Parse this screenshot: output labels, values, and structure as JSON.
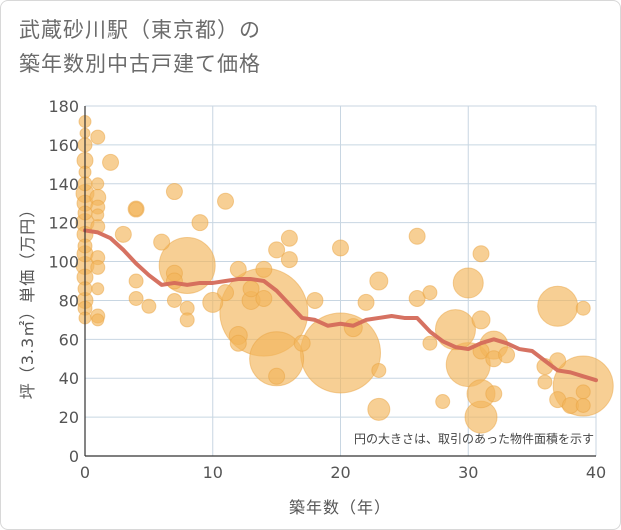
{
  "title": {
    "line1": "武蔵砂川駅（東京都）の",
    "line2": "築年数別中古戸建て価格"
  },
  "note": "円の大きさは、取引のあった物件面積を示す",
  "colors": {
    "bubble": "#f2b55a",
    "bubble_stroke": "#eaa441",
    "line": "#d46a5a",
    "grid": "#c8d6e2",
    "axis": "#333333"
  },
  "chart_data": {
    "type": "scatter",
    "title": "武蔵砂川駅（東京都）の築年数別中古戸建て価格",
    "xlabel": "築年数（年）",
    "ylabel": "坪（3.3㎡）単価（万円）",
    "xlim": [
      0,
      40
    ],
    "ylim": [
      0,
      180
    ],
    "xticks": [
      "0",
      "10",
      "20",
      "30",
      "40"
    ],
    "yticks": [
      "0",
      "20",
      "40",
      "60",
      "80",
      "100",
      "120",
      "140",
      "160",
      "180"
    ],
    "grid": true,
    "bubbles": [
      {
        "x": 0,
        "y": 172,
        "r": 6
      },
      {
        "x": 0,
        "y": 166,
        "r": 5
      },
      {
        "x": 0,
        "y": 160,
        "r": 7
      },
      {
        "x": 0,
        "y": 152,
        "r": 8
      },
      {
        "x": 0,
        "y": 146,
        "r": 6
      },
      {
        "x": 0,
        "y": 140,
        "r": 7
      },
      {
        "x": 0,
        "y": 135,
        "r": 9
      },
      {
        "x": 0,
        "y": 130,
        "r": 8
      },
      {
        "x": 0,
        "y": 125,
        "r": 7
      },
      {
        "x": 0,
        "y": 120,
        "r": 9
      },
      {
        "x": 0,
        "y": 114,
        "r": 8
      },
      {
        "x": 0,
        "y": 108,
        "r": 7
      },
      {
        "x": 0,
        "y": 104,
        "r": 8
      },
      {
        "x": 0,
        "y": 98,
        "r": 9
      },
      {
        "x": 0,
        "y": 92,
        "r": 8
      },
      {
        "x": 0,
        "y": 86,
        "r": 7
      },
      {
        "x": 0,
        "y": 80,
        "r": 8
      },
      {
        "x": 0,
        "y": 76,
        "r": 7
      },
      {
        "x": 0,
        "y": 71,
        "r": 6
      },
      {
        "x": 1,
        "y": 164,
        "r": 7
      },
      {
        "x": 1,
        "y": 140,
        "r": 6
      },
      {
        "x": 1,
        "y": 133,
        "r": 8
      },
      {
        "x": 1,
        "y": 128,
        "r": 7
      },
      {
        "x": 1,
        "y": 124,
        "r": 6
      },
      {
        "x": 1,
        "y": 118,
        "r": 7
      },
      {
        "x": 1,
        "y": 102,
        "r": 7
      },
      {
        "x": 1,
        "y": 97,
        "r": 7
      },
      {
        "x": 1,
        "y": 86,
        "r": 6
      },
      {
        "x": 1,
        "y": 72,
        "r": 7
      },
      {
        "x": 1,
        "y": 70,
        "r": 6
      },
      {
        "x": 2,
        "y": 151,
        "r": 8
      },
      {
        "x": 3,
        "y": 114,
        "r": 8
      },
      {
        "x": 4,
        "y": 127,
        "r": 8
      },
      {
        "x": 4,
        "y": 127,
        "r": 7
      },
      {
        "x": 4,
        "y": 90,
        "r": 7
      },
      {
        "x": 4,
        "y": 81,
        "r": 7
      },
      {
        "x": 5,
        "y": 77,
        "r": 7
      },
      {
        "x": 6,
        "y": 110,
        "r": 8
      },
      {
        "x": 7,
        "y": 136,
        "r": 8
      },
      {
        "x": 7,
        "y": 94,
        "r": 8
      },
      {
        "x": 7,
        "y": 90,
        "r": 8
      },
      {
        "x": 7,
        "y": 80,
        "r": 7
      },
      {
        "x": 8,
        "y": 98,
        "r": 28
      },
      {
        "x": 8,
        "y": 76,
        "r": 7
      },
      {
        "x": 8,
        "y": 70,
        "r": 7
      },
      {
        "x": 9,
        "y": 120,
        "r": 8
      },
      {
        "x": 10,
        "y": 79,
        "r": 10
      },
      {
        "x": 11,
        "y": 131,
        "r": 8
      },
      {
        "x": 11,
        "y": 84,
        "r": 8
      },
      {
        "x": 12,
        "y": 96,
        "r": 8
      },
      {
        "x": 12,
        "y": 62,
        "r": 9
      },
      {
        "x": 12,
        "y": 58,
        "r": 8
      },
      {
        "x": 13,
        "y": 80,
        "r": 9
      },
      {
        "x": 13,
        "y": 86,
        "r": 8
      },
      {
        "x": 14,
        "y": 74,
        "r": 44
      },
      {
        "x": 14,
        "y": 96,
        "r": 8
      },
      {
        "x": 14,
        "y": 81,
        "r": 8
      },
      {
        "x": 15,
        "y": 50,
        "r": 27
      },
      {
        "x": 15,
        "y": 106,
        "r": 8
      },
      {
        "x": 15,
        "y": 41,
        "r": 8
      },
      {
        "x": 16,
        "y": 112,
        "r": 8
      },
      {
        "x": 16,
        "y": 101,
        "r": 8
      },
      {
        "x": 17,
        "y": 58,
        "r": 8
      },
      {
        "x": 18,
        "y": 80,
        "r": 8
      },
      {
        "x": 20,
        "y": 53,
        "r": 40
      },
      {
        "x": 20,
        "y": 107,
        "r": 8
      },
      {
        "x": 21,
        "y": 66,
        "r": 9
      },
      {
        "x": 22,
        "y": 79,
        "r": 8
      },
      {
        "x": 23,
        "y": 90,
        "r": 9
      },
      {
        "x": 23,
        "y": 44,
        "r": 7
      },
      {
        "x": 23,
        "y": 24,
        "r": 11
      },
      {
        "x": 26,
        "y": 113,
        "r": 8
      },
      {
        "x": 26,
        "y": 81,
        "r": 8
      },
      {
        "x": 27,
        "y": 84,
        "r": 7
      },
      {
        "x": 27,
        "y": 58,
        "r": 7
      },
      {
        "x": 28,
        "y": 28,
        "r": 7
      },
      {
        "x": 29,
        "y": 65,
        "r": 20
      },
      {
        "x": 30,
        "y": 89,
        "r": 15
      },
      {
        "x": 30,
        "y": 47,
        "r": 22
      },
      {
        "x": 31,
        "y": 104,
        "r": 8
      },
      {
        "x": 31,
        "y": 70,
        "r": 9
      },
      {
        "x": 31,
        "y": 54,
        "r": 8
      },
      {
        "x": 31,
        "y": 32,
        "r": 14
      },
      {
        "x": 31,
        "y": 20,
        "r": 16
      },
      {
        "x": 32,
        "y": 57,
        "r": 14
      },
      {
        "x": 32,
        "y": 50,
        "r": 8
      },
      {
        "x": 32,
        "y": 32,
        "r": 8
      },
      {
        "x": 33,
        "y": 52,
        "r": 8
      },
      {
        "x": 36,
        "y": 46,
        "r": 8
      },
      {
        "x": 36,
        "y": 38,
        "r": 7
      },
      {
        "x": 37,
        "y": 77,
        "r": 20
      },
      {
        "x": 37,
        "y": 29,
        "r": 8
      },
      {
        "x": 37,
        "y": 49,
        "r": 8
      },
      {
        "x": 38,
        "y": 26,
        "r": 8
      },
      {
        "x": 39,
        "y": 36,
        "r": 30
      },
      {
        "x": 39,
        "y": 33,
        "r": 7
      },
      {
        "x": 39,
        "y": 76,
        "r": 7
      },
      {
        "x": 39,
        "y": 26,
        "r": 7
      }
    ],
    "trend": {
      "x": [
        0,
        1,
        2,
        3,
        4,
        5,
        6,
        7,
        8,
        9,
        10,
        11,
        12,
        13,
        14,
        15,
        16,
        17,
        18,
        19,
        20,
        21,
        22,
        23,
        24,
        25,
        26,
        27,
        28,
        29,
        30,
        31,
        32,
        33,
        34,
        35,
        36,
        37,
        38,
        39,
        40
      ],
      "y": [
        116,
        115,
        112,
        106,
        99,
        93,
        88,
        89,
        88,
        89,
        89,
        90,
        91,
        91,
        90,
        85,
        78,
        71,
        70,
        67,
        68,
        67,
        70,
        71,
        72,
        71,
        71,
        64,
        59,
        56,
        55,
        58,
        60,
        58,
        55,
        54,
        49,
        44,
        43,
        41,
        39
      ]
    }
  }
}
